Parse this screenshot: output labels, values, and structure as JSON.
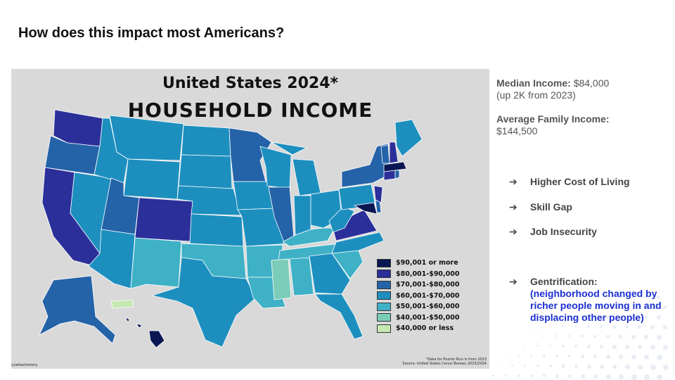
{
  "slide": {
    "title": "How does this impact most Americans?"
  },
  "map": {
    "title_line1": "United States 2024*",
    "title_line2": "HOUSEHOLD INCOME",
    "footnote_line1": "*Data for Puerto Rico is from 2023",
    "footnote_line2": "Source: United States Cenus Bureau 2023/2024",
    "credit": "u/atlashistory",
    "legend": [
      {
        "label": "$90,001 or more",
        "color": "#0b1753"
      },
      {
        "label": "$80,001-$90,000",
        "color": "#2b2f9a"
      },
      {
        "label": "$70,001-$80,000",
        "color": "#2563a8"
      },
      {
        "label": "$60,001-$70,000",
        "color": "#1d8fbf"
      },
      {
        "label": "$50,001-$60,000",
        "color": "#3fb1c6"
      },
      {
        "label": "$40,001-$50,000",
        "color": "#7ccdb8"
      },
      {
        "label": "$40,000 or less",
        "color": "#c7e8b3"
      }
    ]
  },
  "stats": {
    "median_label": "Median Income:",
    "median_value": "$84,000",
    "median_note": "(up 2K from 2023)",
    "average_label": "Average Family Income:",
    "average_value": "$144,500"
  },
  "bullets": {
    "arrow": "➔",
    "items": [
      {
        "text": "Higher Cost of Living"
      },
      {
        "text": "Skill Gap"
      },
      {
        "text": "Job Insecurity"
      }
    ],
    "gentrification_label": "Gentrification:",
    "gentrification_detail": "(neighborhood changed by richer people moving in and displacing other people)"
  }
}
